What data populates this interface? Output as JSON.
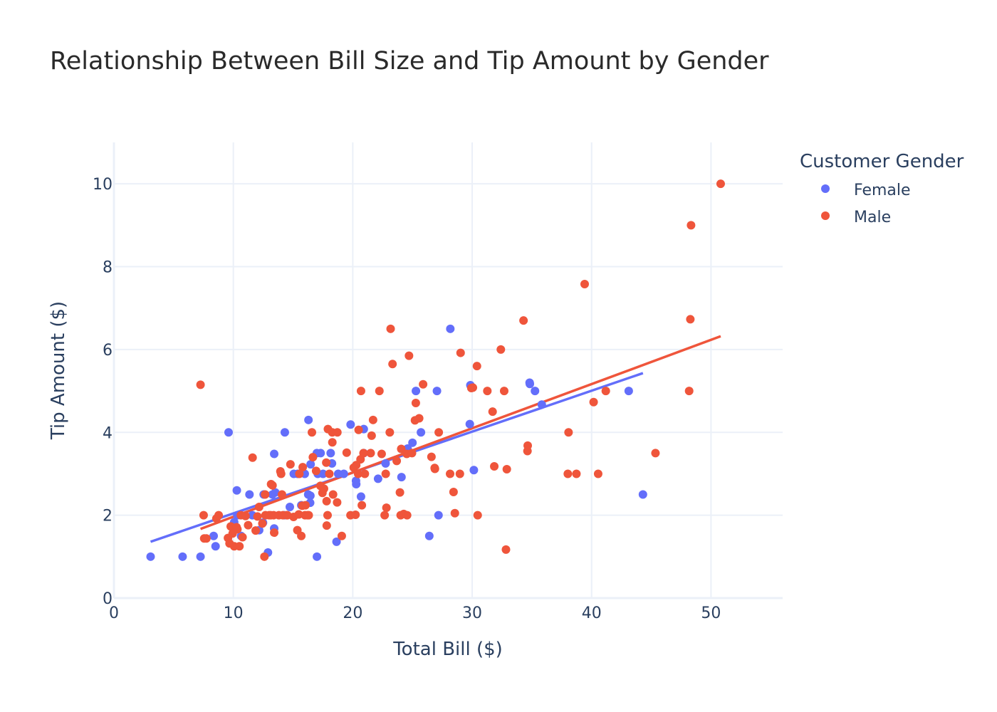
{
  "chart_data": {
    "type": "scatter",
    "title": "Relationship Between Bill Size and Tip Amount by Gender",
    "xlabel": "Total Bill ($)",
    "ylabel": "Tip Amount ($)",
    "xlim": [
      0,
      56
    ],
    "ylim": [
      0,
      11
    ],
    "x_ticks": [
      0,
      10,
      20,
      30,
      40,
      50
    ],
    "y_ticks": [
      0,
      2,
      4,
      6,
      8,
      10
    ],
    "grid": true,
    "legend": {
      "title": "Customer Gender",
      "position": "top-right"
    },
    "series": [
      {
        "name": "Female",
        "color": "#636efa",
        "points": [
          [
            3.07,
            1.0
          ],
          [
            5.75,
            1.0
          ],
          [
            7.25,
            1.0
          ],
          [
            8.35,
            1.5
          ],
          [
            8.51,
            1.25
          ],
          [
            9.6,
            4.0
          ],
          [
            10.07,
            1.83
          ],
          [
            10.29,
            2.6
          ],
          [
            10.33,
            2.0
          ],
          [
            10.65,
            1.5
          ],
          [
            11.35,
            2.5
          ],
          [
            11.59,
            2.0
          ],
          [
            12.16,
            1.64
          ],
          [
            12.54,
            2.5
          ],
          [
            12.48,
            1.82
          ],
          [
            12.9,
            1.1
          ],
          [
            13.27,
            2.5
          ],
          [
            13.42,
            3.48
          ],
          [
            13.42,
            1.68
          ],
          [
            13.51,
            2.55
          ],
          [
            14.31,
            4.0
          ],
          [
            14.26,
            2.0
          ],
          [
            14.73,
            2.2
          ],
          [
            15.06,
            3.0
          ],
          [
            15.38,
            3.0
          ],
          [
            15.69,
            2.24
          ],
          [
            15.98,
            3.0
          ],
          [
            16.27,
            2.5
          ],
          [
            16.29,
            4.3
          ],
          [
            16.43,
            2.3
          ],
          [
            16.47,
            3.23
          ],
          [
            16.45,
            2.47
          ],
          [
            16.99,
            3.5
          ],
          [
            17.07,
            3.0
          ],
          [
            17.31,
            3.5
          ],
          [
            17.51,
            3.0
          ],
          [
            17.0,
            1.0
          ],
          [
            18.26,
            3.25
          ],
          [
            18.15,
            3.5
          ],
          [
            18.64,
            1.36
          ],
          [
            18.78,
            3.0
          ],
          [
            19.82,
            4.19
          ],
          [
            20.27,
            2.83
          ],
          [
            20.29,
            2.75
          ],
          [
            20.92,
            4.08
          ],
          [
            20.92,
            3.5
          ],
          [
            20.69,
            2.45
          ],
          [
            22.12,
            2.88
          ],
          [
            22.75,
            3.25
          ],
          [
            24.08,
            2.92
          ],
          [
            25.0,
            3.75
          ],
          [
            25.29,
            5.0
          ],
          [
            25.71,
            4.0
          ],
          [
            26.41,
            1.5
          ],
          [
            27.05,
            5.0
          ],
          [
            27.18,
            2.0
          ],
          [
            28.17,
            6.5
          ],
          [
            29.85,
            5.14
          ],
          [
            29.8,
            4.2
          ],
          [
            30.14,
            3.09
          ],
          [
            34.83,
            5.17
          ],
          [
            34.81,
            5.2
          ],
          [
            35.26,
            5.0
          ],
          [
            35.83,
            4.67
          ],
          [
            43.11,
            5.0
          ],
          [
            44.3,
            2.5
          ],
          [
            24.59,
            3.61
          ],
          [
            19.25,
            3.0
          ]
        ],
        "trendline": [
          [
            3.07,
            1.36
          ],
          [
            44.3,
            5.43
          ]
        ]
      },
      {
        "name": "Male",
        "color": "#ef553b",
        "points": [
          [
            7.25,
            5.15
          ],
          [
            7.51,
            2.0
          ],
          [
            7.56,
            1.44
          ],
          [
            7.74,
            1.44
          ],
          [
            8.58,
            1.92
          ],
          [
            8.77,
            2.0
          ],
          [
            9.55,
            1.45
          ],
          [
            9.68,
            1.32
          ],
          [
            9.78,
            1.73
          ],
          [
            9.94,
            1.56
          ],
          [
            10.07,
            1.25
          ],
          [
            10.27,
            1.71
          ],
          [
            10.34,
            1.66
          ],
          [
            10.51,
            1.25
          ],
          [
            10.63,
            2.0
          ],
          [
            10.77,
            1.47
          ],
          [
            11.02,
            1.98
          ],
          [
            11.24,
            1.76
          ],
          [
            11.61,
            3.39
          ],
          [
            11.87,
            1.63
          ],
          [
            12.02,
            1.97
          ],
          [
            12.16,
            2.2
          ],
          [
            12.43,
            1.8
          ],
          [
            12.6,
            1.0
          ],
          [
            12.66,
            2.5
          ],
          [
            13.0,
            2.0
          ],
          [
            13.13,
            2.0
          ],
          [
            13.16,
            2.75
          ],
          [
            13.37,
            2.0
          ],
          [
            13.42,
            1.58
          ],
          [
            13.81,
            2.0
          ],
          [
            13.94,
            3.06
          ],
          [
            14.07,
            2.5
          ],
          [
            14.15,
            2.0
          ],
          [
            14.52,
            2.0
          ],
          [
            14.78,
            3.23
          ],
          [
            15.04,
            1.96
          ],
          [
            15.36,
            1.64
          ],
          [
            15.48,
            2.02
          ],
          [
            15.53,
            3.0
          ],
          [
            15.69,
            1.5
          ],
          [
            15.81,
            3.16
          ],
          [
            16.0,
            2.0
          ],
          [
            16.04,
            2.24
          ],
          [
            16.21,
            2.0
          ],
          [
            16.31,
            2.0
          ],
          [
            16.58,
            4.0
          ],
          [
            16.66,
            3.4
          ],
          [
            16.93,
            3.07
          ],
          [
            17.29,
            2.71
          ],
          [
            17.46,
            2.54
          ],
          [
            17.59,
            2.64
          ],
          [
            17.78,
            3.27
          ],
          [
            17.81,
            2.34
          ],
          [
            17.82,
            1.75
          ],
          [
            17.92,
            4.08
          ],
          [
            18.04,
            3.0
          ],
          [
            18.28,
            4.0
          ],
          [
            18.29,
            3.76
          ],
          [
            18.35,
            2.5
          ],
          [
            18.69,
            2.31
          ],
          [
            18.71,
            4.0
          ],
          [
            19.08,
            1.5
          ],
          [
            19.49,
            3.51
          ],
          [
            19.81,
            2.0
          ],
          [
            20.08,
            3.15
          ],
          [
            20.23,
            2.01
          ],
          [
            20.45,
            3.0
          ],
          [
            20.49,
            4.06
          ],
          [
            20.65,
            3.35
          ],
          [
            20.76,
            2.24
          ],
          [
            20.69,
            5.0
          ],
          [
            21.01,
            3.0
          ],
          [
            21.5,
            3.5
          ],
          [
            21.58,
            3.92
          ],
          [
            21.7,
            4.3
          ],
          [
            22.23,
            5.0
          ],
          [
            22.42,
            3.48
          ],
          [
            22.67,
            2.0
          ],
          [
            22.76,
            3.0
          ],
          [
            22.82,
            2.18
          ],
          [
            23.1,
            4.0
          ],
          [
            23.33,
            5.65
          ],
          [
            23.17,
            6.5
          ],
          [
            23.68,
            3.31
          ],
          [
            24.01,
            2.0
          ],
          [
            24.06,
            3.6
          ],
          [
            24.27,
            2.03
          ],
          [
            24.52,
            3.48
          ],
          [
            24.55,
            2.0
          ],
          [
            24.71,
            5.85
          ],
          [
            25.21,
            4.29
          ],
          [
            25.28,
            4.71
          ],
          [
            25.56,
            4.34
          ],
          [
            25.89,
            5.16
          ],
          [
            26.59,
            3.41
          ],
          [
            26.88,
            3.12
          ],
          [
            27.2,
            4.0
          ],
          [
            28.15,
            3.0
          ],
          [
            28.44,
            2.56
          ],
          [
            28.55,
            2.05
          ],
          [
            28.97,
            3.0
          ],
          [
            29.03,
            5.92
          ],
          [
            30.06,
            5.08
          ],
          [
            30.4,
            5.6
          ],
          [
            30.46,
            2.0
          ],
          [
            31.27,
            5.0
          ],
          [
            31.71,
            4.5
          ],
          [
            31.85,
            3.18
          ],
          [
            32.4,
            6.0
          ],
          [
            32.68,
            5.0
          ],
          [
            32.83,
            1.17
          ],
          [
            32.9,
            3.11
          ],
          [
            34.3,
            6.7
          ],
          [
            34.63,
            3.55
          ],
          [
            34.65,
            3.68
          ],
          [
            38.01,
            3.0
          ],
          [
            38.07,
            4.0
          ],
          [
            38.73,
            3.0
          ],
          [
            39.42,
            7.58
          ],
          [
            40.17,
            4.73
          ],
          [
            40.55,
            3.0
          ],
          [
            41.19,
            5.0
          ],
          [
            45.35,
            3.5
          ],
          [
            48.17,
            5.0
          ],
          [
            48.27,
            6.73
          ],
          [
            48.33,
            9.0
          ],
          [
            50.81,
            10.0
          ],
          [
            20.29,
            3.21
          ],
          [
            23.95,
            2.55
          ],
          [
            15.77,
            2.23
          ],
          [
            13.28,
            2.72
          ],
          [
            24.96,
            3.5
          ],
          [
            17.89,
            2.0
          ],
          [
            14.0,
            3.0
          ],
          [
            14.48,
            2.0
          ],
          [
            29.93,
            5.07
          ],
          [
            26.86,
            3.14
          ],
          [
            12.69,
            2.0
          ],
          [
            20.9,
            3.5
          ]
        ],
        "trendline": [
          [
            7.25,
            1.67
          ],
          [
            50.81,
            6.32
          ]
        ]
      }
    ]
  }
}
